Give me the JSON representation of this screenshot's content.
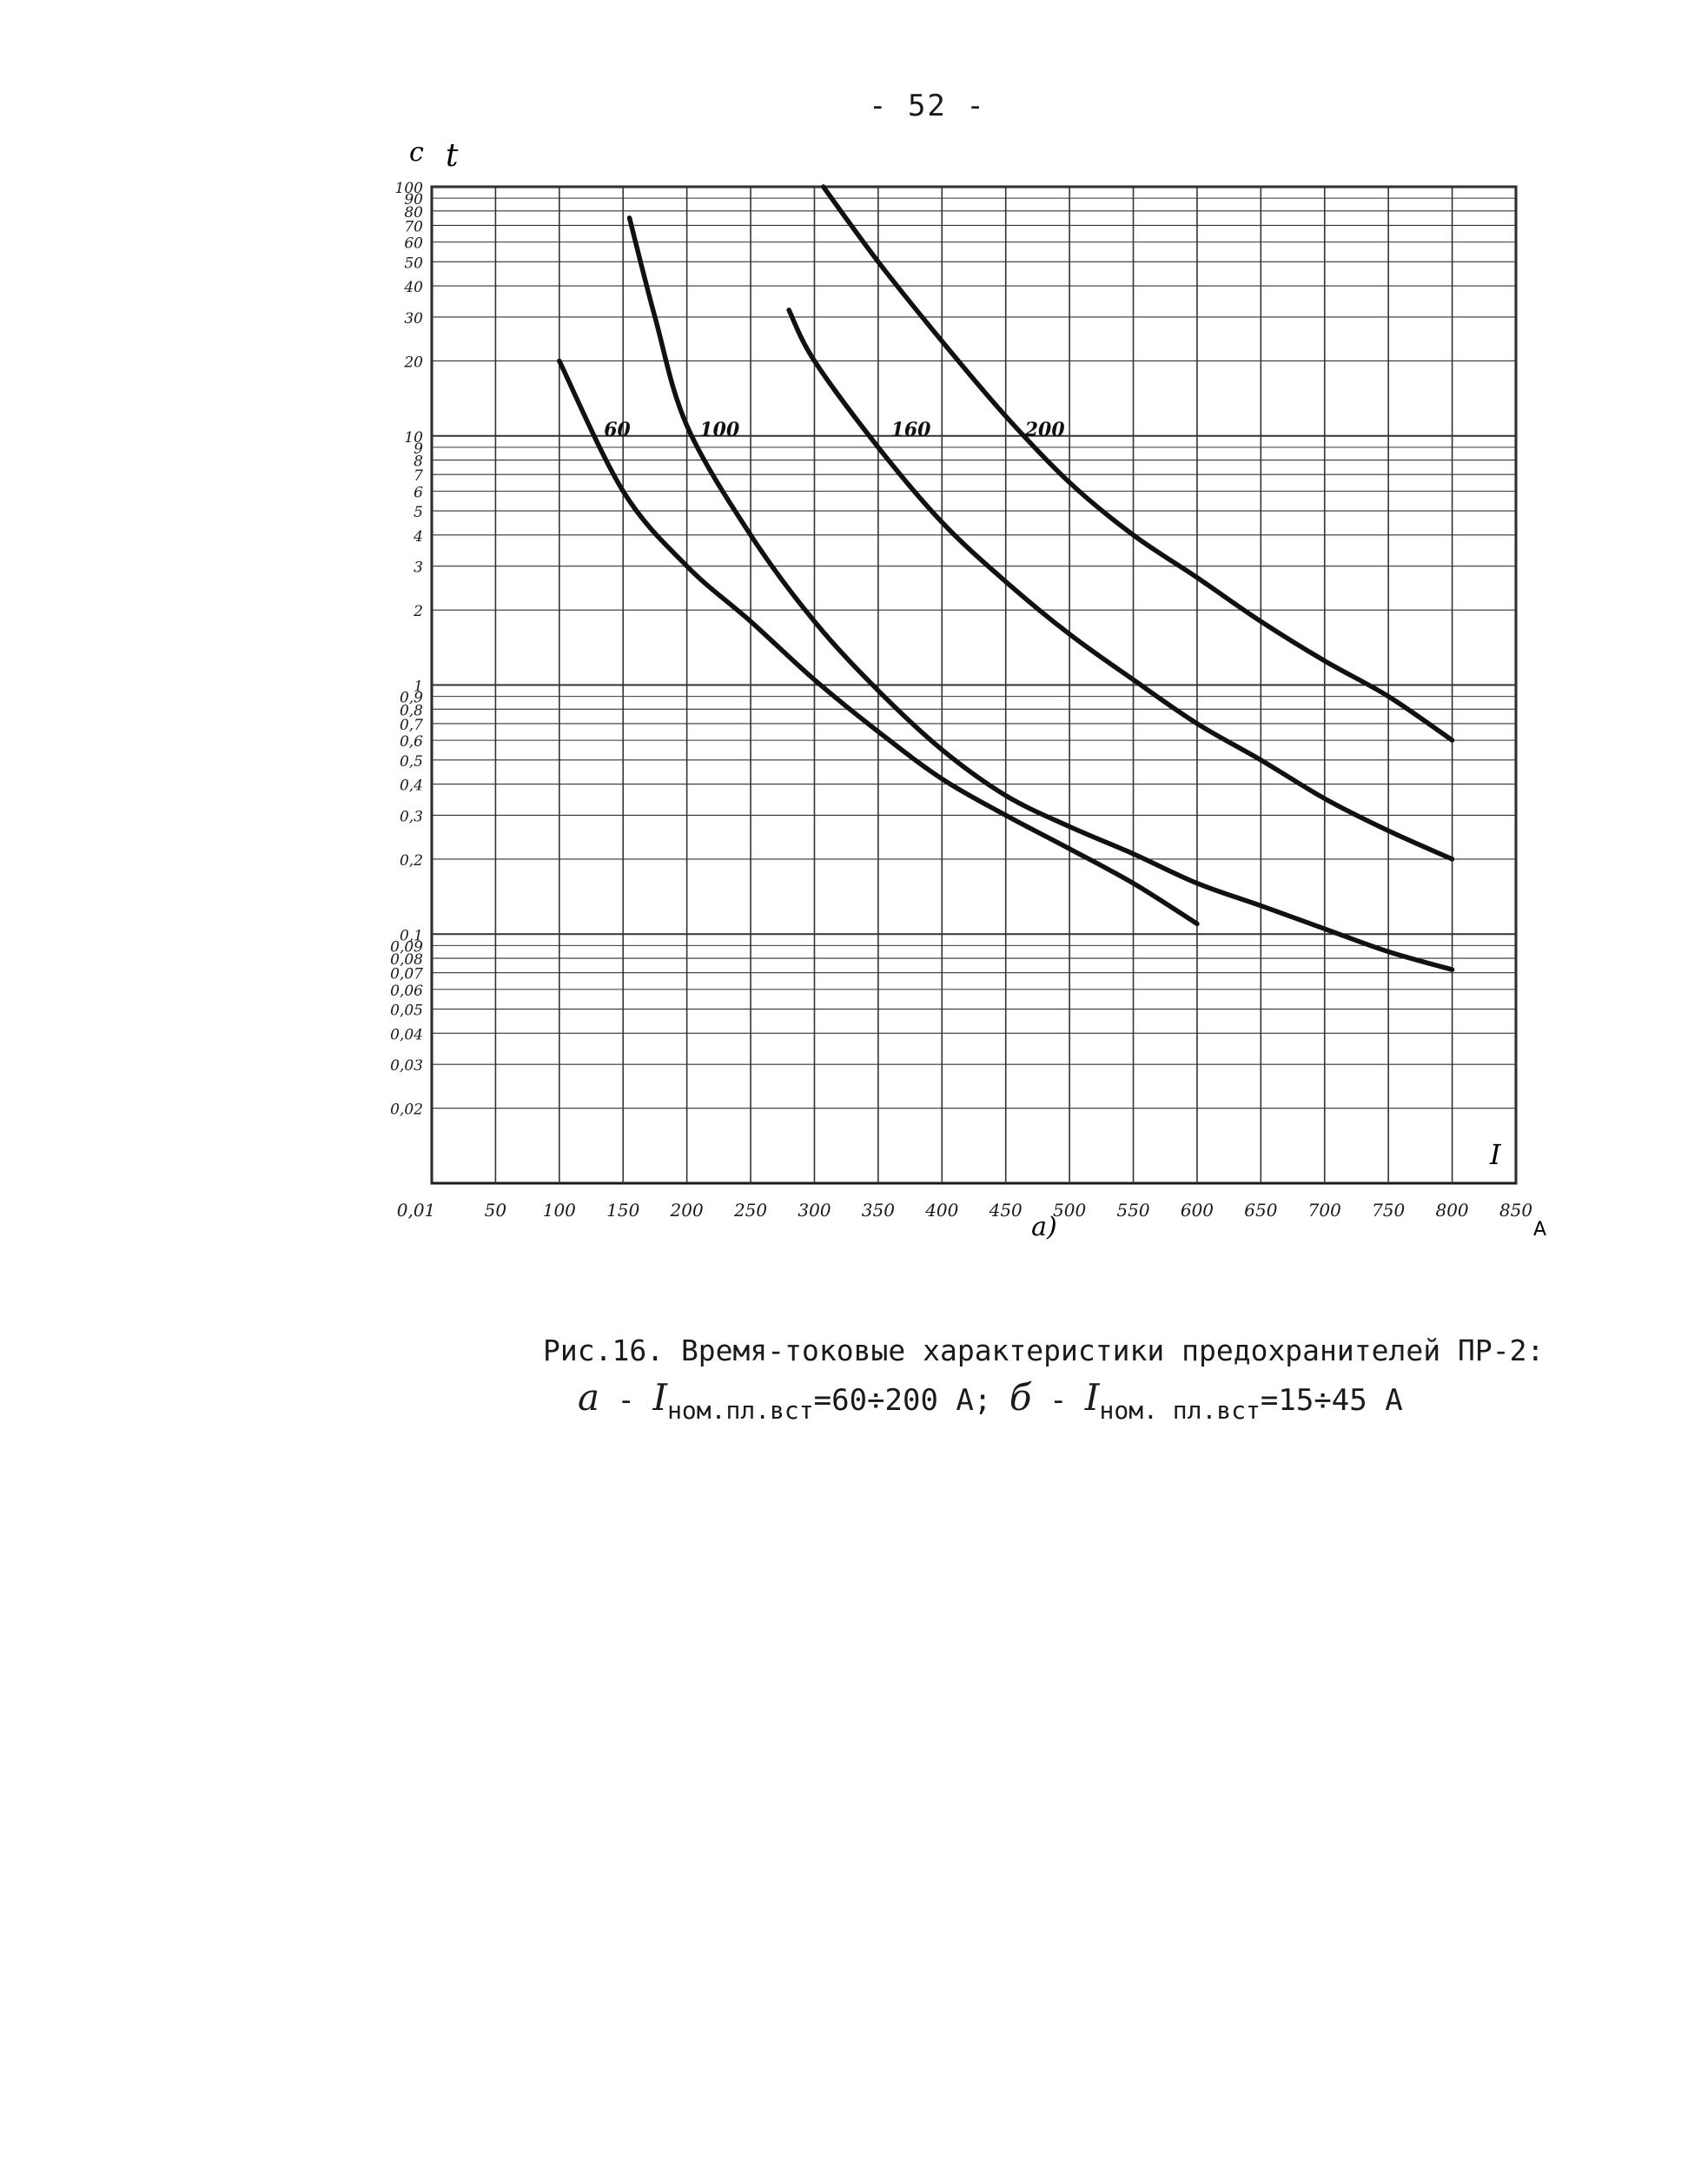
{
  "page": {
    "number": "- 52 -"
  },
  "chart_data": {
    "type": "line",
    "x_scale": "linear",
    "y_scale": "log",
    "xlim": [
      0,
      850
    ],
    "ylim": [
      0.01,
      100
    ],
    "grid": true,
    "ylabel_unit": "с",
    "ylabel": "t",
    "xlabel": "I",
    "xlabel_unit": "А",
    "panel_label": "а)",
    "x_ticks": [
      {
        "v": 0,
        "label": "0,01"
      },
      {
        "v": 50,
        "label": "50"
      },
      {
        "v": 100,
        "label": "100"
      },
      {
        "v": 150,
        "label": "150"
      },
      {
        "v": 200,
        "label": "200"
      },
      {
        "v": 250,
        "label": "250"
      },
      {
        "v": 300,
        "label": "300"
      },
      {
        "v": 350,
        "label": "350"
      },
      {
        "v": 400,
        "label": "400"
      },
      {
        "v": 450,
        "label": "450"
      },
      {
        "v": 500,
        "label": "500"
      },
      {
        "v": 550,
        "label": "550"
      },
      {
        "v": 600,
        "label": "600"
      },
      {
        "v": 650,
        "label": "650"
      },
      {
        "v": 700,
        "label": "700"
      },
      {
        "v": 750,
        "label": "750"
      },
      {
        "v": 800,
        "label": "800"
      },
      {
        "v": 850,
        "label": "850"
      }
    ],
    "y_ticks": [
      {
        "v": 100,
        "label": "100"
      },
      {
        "v": 90,
        "label": "90"
      },
      {
        "v": 80,
        "label": "80"
      },
      {
        "v": 70,
        "label": "70"
      },
      {
        "v": 60,
        "label": "60"
      },
      {
        "v": 50,
        "label": "50"
      },
      {
        "v": 40,
        "label": "40"
      },
      {
        "v": 30,
        "label": "30"
      },
      {
        "v": 20,
        "label": "20"
      },
      {
        "v": 10,
        "label": "10"
      },
      {
        "v": 9,
        "label": "9"
      },
      {
        "v": 8,
        "label": "8"
      },
      {
        "v": 7,
        "label": "7"
      },
      {
        "v": 6,
        "label": "6"
      },
      {
        "v": 5,
        "label": "5"
      },
      {
        "v": 4,
        "label": "4"
      },
      {
        "v": 3,
        "label": "3"
      },
      {
        "v": 2,
        "label": "2"
      },
      {
        "v": 1,
        "label": "1"
      },
      {
        "v": 0.9,
        "label": "0,9"
      },
      {
        "v": 0.8,
        "label": "0,8"
      },
      {
        "v": 0.7,
        "label": "0,7"
      },
      {
        "v": 0.6,
        "label": "0,6"
      },
      {
        "v": 0.5,
        "label": "0,5"
      },
      {
        "v": 0.4,
        "label": "0,4"
      },
      {
        "v": 0.3,
        "label": "0,3"
      },
      {
        "v": 0.2,
        "label": "0,2"
      },
      {
        "v": 0.1,
        "label": "0,1"
      },
      {
        "v": 0.09,
        "label": "0,09"
      },
      {
        "v": 0.08,
        "label": "0,08"
      },
      {
        "v": 0.07,
        "label": "0,07"
      },
      {
        "v": 0.06,
        "label": "0,06"
      },
      {
        "v": 0.05,
        "label": "0,05"
      },
      {
        "v": 0.04,
        "label": "0,04"
      },
      {
        "v": 0.03,
        "label": "0,03"
      },
      {
        "v": 0.02,
        "label": "0,02"
      }
    ],
    "series": [
      {
        "name": "60",
        "label_at": [
          135,
          10
        ],
        "points": [
          [
            100,
            20
          ],
          [
            150,
            6
          ],
          [
            200,
            3
          ],
          [
            250,
            1.8
          ],
          [
            300,
            1.05
          ],
          [
            350,
            0.65
          ],
          [
            400,
            0.42
          ],
          [
            450,
            0.3
          ],
          [
            500,
            0.22
          ],
          [
            550,
            0.16
          ],
          [
            600,
            0.11
          ]
        ]
      },
      {
        "name": "100",
        "label_at": [
          210,
          10
        ],
        "points": [
          [
            155,
            75
          ],
          [
            175,
            30
          ],
          [
            200,
            11
          ],
          [
            250,
            4
          ],
          [
            300,
            1.8
          ],
          [
            350,
            0.95
          ],
          [
            400,
            0.55
          ],
          [
            450,
            0.36
          ],
          [
            500,
            0.27
          ],
          [
            550,
            0.21
          ],
          [
            600,
            0.16
          ],
          [
            650,
            0.13
          ],
          [
            700,
            0.105
          ],
          [
            750,
            0.085
          ],
          [
            800,
            0.072
          ]
        ]
      },
      {
        "name": "160",
        "label_at": [
          360,
          10
        ],
        "points": [
          [
            280,
            32
          ],
          [
            300,
            20
          ],
          [
            350,
            9
          ],
          [
            400,
            4.5
          ],
          [
            450,
            2.6
          ],
          [
            500,
            1.6
          ],
          [
            550,
            1.05
          ],
          [
            600,
            0.7
          ],
          [
            650,
            0.5
          ],
          [
            700,
            0.35
          ],
          [
            750,
            0.26
          ],
          [
            800,
            0.2
          ]
        ]
      },
      {
        "name": "200",
        "label_at": [
          465,
          10
        ],
        "points": [
          [
            307,
            100
          ],
          [
            350,
            50
          ],
          [
            400,
            24
          ],
          [
            450,
            12
          ],
          [
            500,
            6.5
          ],
          [
            550,
            4
          ],
          [
            600,
            2.7
          ],
          [
            650,
            1.8
          ],
          [
            700,
            1.25
          ],
          [
            750,
            0.9
          ],
          [
            800,
            0.6
          ]
        ]
      }
    ]
  },
  "caption": {
    "line1": "Рис.16. Время-токовые характеристики предохранителей ПР-2:",
    "a_letter": "а",
    "a_dash": " - ",
    "a_I": "I",
    "a_sub": "ном.пл.вст",
    "a_value": "=60÷200 А;",
    "b_letter": "б",
    "b_dash": " - ",
    "b_I": "I",
    "b_sub": "ном. пл.вст",
    "b_value": "=15÷45 А"
  }
}
